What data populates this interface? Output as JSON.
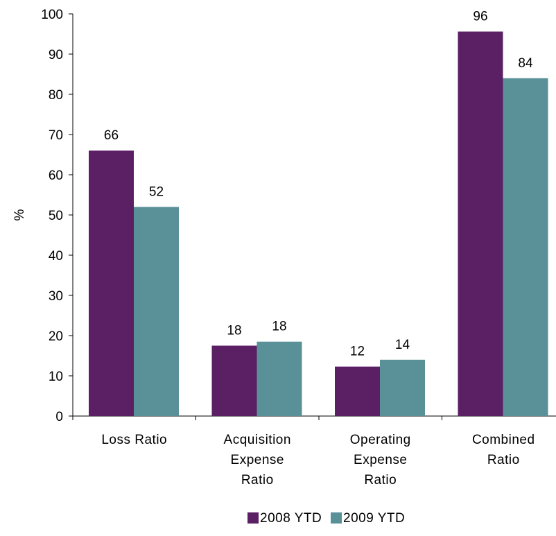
{
  "chart_data": {
    "type": "bar",
    "title": "",
    "xlabel": "",
    "ylabel": "%",
    "ylim": [
      0,
      100
    ],
    "yticks": [
      0,
      10,
      20,
      30,
      40,
      50,
      60,
      70,
      80,
      90,
      100
    ],
    "categories": [
      [
        "Loss Ratio"
      ],
      [
        "Acquisition",
        "Expense",
        "Ratio"
      ],
      [
        "Operating",
        "Expense",
        "Ratio"
      ],
      [
        "Combined",
        "Ratio"
      ]
    ],
    "series": [
      {
        "name": "2008 YTD",
        "color": "#5B1F63",
        "values": [
          66,
          17.5,
          12.3,
          95.6
        ],
        "labels": [
          "66",
          "18",
          "12",
          "96"
        ]
      },
      {
        "name": "2009 YTD",
        "color": "#5A9199",
        "values": [
          52,
          18.5,
          14,
          84
        ],
        "labels": [
          "52",
          "18",
          "14",
          "84"
        ]
      }
    ],
    "grid": false,
    "legend": "bottom-center"
  }
}
